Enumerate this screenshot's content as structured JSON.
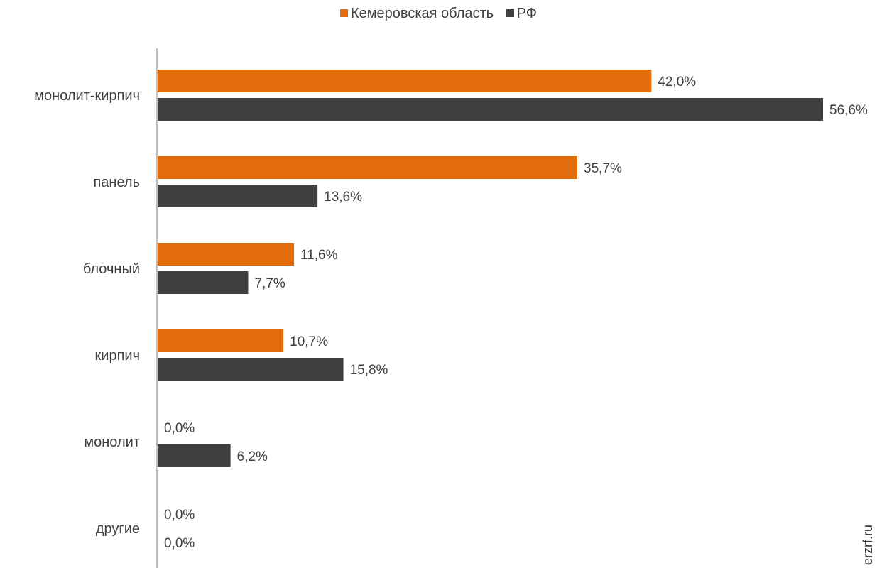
{
  "legend": {
    "series1_label": "Кемеровская область",
    "series2_label": "РФ"
  },
  "watermark": "erzrf.ru",
  "colors": {
    "series1": "#E36C0A",
    "series2": "#404040",
    "axis": "#BFBFBF",
    "text": "#404040"
  },
  "chart_data": {
    "type": "bar",
    "orientation": "horizontal",
    "categories": [
      "монолит-кирпич",
      "панель",
      "блочный",
      "кирпич",
      "монолит",
      "другие"
    ],
    "series": [
      {
        "name": "Кемеровская область",
        "values": [
          42.0,
          35.7,
          11.6,
          10.7,
          0.0,
          0.0
        ],
        "labels": [
          "42,0%",
          "35,7%",
          "11,6%",
          "10,7%",
          "0,0%",
          "0,0%"
        ]
      },
      {
        "name": "РФ",
        "values": [
          56.6,
          13.6,
          7.7,
          15.8,
          6.2,
          0.0
        ],
        "labels": [
          "56,6%",
          "13,6%",
          "7,7%",
          "15,8%",
          "6,2%",
          "0,0%"
        ]
      }
    ],
    "xlim": [
      0,
      60
    ],
    "grid": false,
    "legend_position": "top"
  }
}
